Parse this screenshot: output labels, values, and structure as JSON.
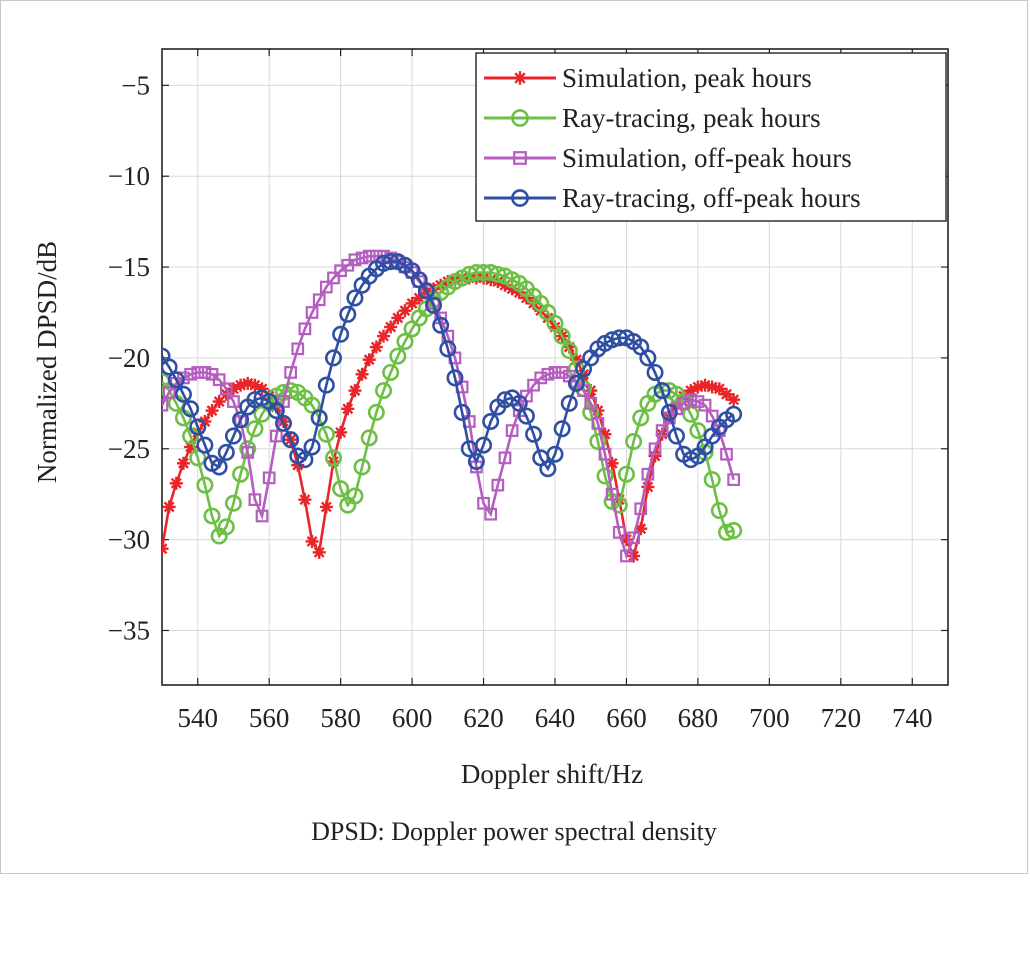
{
  "chart_data": {
    "type": "line",
    "xlabel": "Doppler shift/Hz",
    "ylabel": "Normalized DPSD/dB",
    "xlim": [
      530,
      750
    ],
    "ylim": [
      -38,
      -3
    ],
    "xticks": [
      540,
      560,
      580,
      600,
      620,
      640,
      660,
      680,
      700,
      720,
      740
    ],
    "yticks": [
      -5,
      -10,
      -15,
      -20,
      -25,
      -30,
      -35
    ],
    "ytick_labels": [
      "−5",
      "−10",
      "−15",
      "−20",
      "−25",
      "−30",
      "−35"
    ],
    "grid": true,
    "legend_position": "top-right",
    "x_start": 530,
    "x_step": 2,
    "series": [
      {
        "name": "Simulation, peak hours",
        "color": "#e8262a",
        "marker": "asterisk",
        "values": [
          -30.5,
          -28.2,
          -26.9,
          -25.8,
          -24.9,
          -24.1,
          -23.5,
          -22.9,
          -22.4,
          -22.0,
          -21.7,
          -21.5,
          -21.4,
          -21.5,
          -21.7,
          -22.1,
          -22.7,
          -23.5,
          -24.5,
          -25.9,
          -27.8,
          -30.1,
          -30.7,
          -28.2,
          -25.7,
          -24.1,
          -22.8,
          -21.8,
          -20.9,
          -20.1,
          -19.4,
          -18.8,
          -18.3,
          -17.8,
          -17.4,
          -17.0,
          -16.7,
          -16.4,
          -16.2,
          -16.0,
          -15.8,
          -15.7,
          -15.6,
          -15.6,
          -15.6,
          -15.6,
          -15.7,
          -15.8,
          -16.0,
          -16.2,
          -16.4,
          -16.7,
          -17.0,
          -17.4,
          -17.8,
          -18.3,
          -18.8,
          -19.4,
          -20.1,
          -20.9,
          -21.8,
          -22.9,
          -24.2,
          -25.8,
          -27.8,
          -30.0,
          -30.9,
          -29.4,
          -27.1,
          -25.4,
          -24.2,
          -23.3,
          -22.6,
          -22.1,
          -21.8,
          -21.6,
          -21.5,
          -21.6,
          -21.7,
          -22.0,
          -22.3
        ]
      },
      {
        "name": "Ray-tracing, peak hours",
        "color": "#6dbf45",
        "marker": "circle",
        "values": [
          -21.3,
          -21.8,
          -22.5,
          -23.3,
          -24.3,
          -25.5,
          -27.0,
          -28.7,
          -29.8,
          -29.3,
          -28.0,
          -26.4,
          -25.0,
          -23.9,
          -23.1,
          -22.5,
          -22.1,
          -21.9,
          -21.8,
          -21.9,
          -22.2,
          -22.6,
          -23.3,
          -24.2,
          -25.5,
          -27.2,
          -28.1,
          -27.6,
          -26.0,
          -24.4,
          -23.0,
          -21.8,
          -20.8,
          -19.9,
          -19.1,
          -18.4,
          -17.8,
          -17.3,
          -16.8,
          -16.4,
          -16.1,
          -15.8,
          -15.6,
          -15.4,
          -15.3,
          -15.3,
          -15.3,
          -15.4,
          -15.5,
          -15.7,
          -15.9,
          -16.2,
          -16.6,
          -17.0,
          -17.5,
          -18.1,
          -18.8,
          -19.6,
          -20.6,
          -21.7,
          -23.0,
          -24.6,
          -26.5,
          -27.9,
          -28.1,
          -26.4,
          -24.6,
          -23.3,
          -22.5,
          -22.0,
          -21.8,
          -21.8,
          -22.0,
          -22.4,
          -23.1,
          -24.0,
          -25.2,
          -26.7,
          -28.4,
          -29.6,
          -29.5
        ]
      },
      {
        "name": "Simulation, off-peak hours",
        "color": "#b45fc0",
        "marker": "square",
        "values": [
          -22.6,
          -21.9,
          -21.4,
          -21.1,
          -20.9,
          -20.8,
          -20.8,
          -20.9,
          -21.2,
          -21.7,
          -22.4,
          -23.5,
          -25.2,
          -27.8,
          -28.7,
          -26.6,
          -24.3,
          -22.4,
          -20.8,
          -19.5,
          -18.4,
          -17.5,
          -16.8,
          -16.1,
          -15.6,
          -15.2,
          -14.9,
          -14.6,
          -14.5,
          -14.4,
          -14.4,
          -14.4,
          -14.5,
          -14.7,
          -15.0,
          -15.3,
          -15.8,
          -16.3,
          -17.0,
          -17.8,
          -18.8,
          -20.0,
          -21.6,
          -23.5,
          -26.0,
          -28.0,
          -28.6,
          -27.0,
          -25.5,
          -24.0,
          -22.9,
          -22.1,
          -21.5,
          -21.1,
          -20.9,
          -20.8,
          -20.8,
          -21.0,
          -21.3,
          -21.8,
          -22.5,
          -23.6,
          -25.3,
          -27.5,
          -29.6,
          -30.9,
          -29.9,
          -28.3,
          -26.4,
          -25.0,
          -24.0,
          -23.3,
          -22.8,
          -22.5,
          -22.3,
          -22.4,
          -22.6,
          -23.2,
          -24.0,
          -25.3,
          -26.7
        ]
      },
      {
        "name": "Ray-tracing, off-peak hours",
        "color": "#2e4fa3",
        "marker": "circle",
        "values": [
          -19.9,
          -20.5,
          -21.2,
          -22.0,
          -22.8,
          -23.8,
          -24.8,
          -25.8,
          -26.0,
          -25.2,
          -24.3,
          -23.4,
          -22.7,
          -22.3,
          -22.2,
          -22.4,
          -22.9,
          -23.6,
          -24.5,
          -25.4,
          -25.6,
          -24.9,
          -23.3,
          -21.5,
          -20.0,
          -18.7,
          -17.6,
          -16.7,
          -16.0,
          -15.5,
          -15.1,
          -14.8,
          -14.7,
          -14.7,
          -14.9,
          -15.2,
          -15.7,
          -16.3,
          -17.1,
          -18.2,
          -19.5,
          -21.1,
          -23.0,
          -25.0,
          -25.7,
          -24.8,
          -23.5,
          -22.7,
          -22.3,
          -22.2,
          -22.5,
          -23.2,
          -24.2,
          -25.5,
          -26.1,
          -25.3,
          -23.9,
          -22.5,
          -21.4,
          -20.6,
          -20.0,
          -19.5,
          -19.2,
          -19.0,
          -18.9,
          -18.9,
          -19.1,
          -19.4,
          -20.0,
          -20.8,
          -21.8,
          -23.0,
          -24.3,
          -25.3,
          -25.6,
          -25.4,
          -24.9,
          -24.3,
          -23.8,
          -23.4,
          -23.1
        ]
      }
    ],
    "caption": "DPSD: Doppler power spectral density"
  }
}
